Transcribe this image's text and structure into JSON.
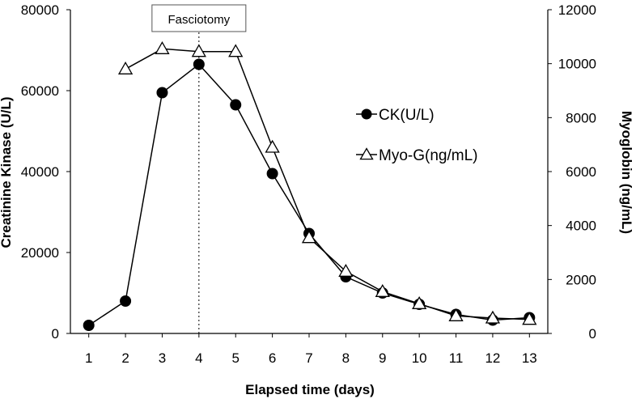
{
  "chart_data": {
    "type": "line",
    "title": "",
    "xlabel": "Elapsed time (days)",
    "ylabel": "Creatinine Kinase (U/L)",
    "y2label": "Myoglobin (ng/mL)",
    "categories": [
      "1",
      "2",
      "3",
      "4",
      "5",
      "6",
      "7",
      "8",
      "9",
      "10",
      "11",
      "12",
      "13"
    ],
    "x": [
      1,
      2,
      3,
      4,
      5,
      6,
      7,
      8,
      9,
      10,
      11,
      12,
      13
    ],
    "xlim": [
      0.5,
      13.5
    ],
    "ylim": [
      0,
      80000
    ],
    "y2lim": [
      0,
      12000
    ],
    "yticks": [
      "0",
      "20000",
      "40000",
      "60000",
      "80000"
    ],
    "y2ticks": [
      "0",
      "2000",
      "4000",
      "6000",
      "8000",
      "10000",
      "12000"
    ],
    "series": [
      {
        "name": "CK(U/L)",
        "axis": "left",
        "marker": "circle-filled",
        "x": [
          1,
          2,
          3,
          4,
          5,
          6,
          7,
          8,
          9,
          10,
          11,
          12,
          13
        ],
        "values": [
          2000,
          8000,
          59500,
          66500,
          56500,
          39500,
          24700,
          14000,
          10000,
          7200,
          4700,
          3300,
          3900
        ]
      },
      {
        "name": "Myo-G(ng/mL)",
        "axis": "right",
        "marker": "triangle-open",
        "x": [
          2,
          3,
          4,
          5,
          6,
          7,
          8,
          9,
          10,
          11,
          12,
          13
        ],
        "values": [
          9800,
          10550,
          10450,
          10450,
          6900,
          3550,
          2300,
          1550,
          1100,
          650,
          570,
          520
        ]
      }
    ],
    "annotations": [
      {
        "text": "Fasciotomy",
        "x": 4,
        "style": "dotted-vertical-line"
      }
    ],
    "grid": false,
    "legend": "right"
  }
}
